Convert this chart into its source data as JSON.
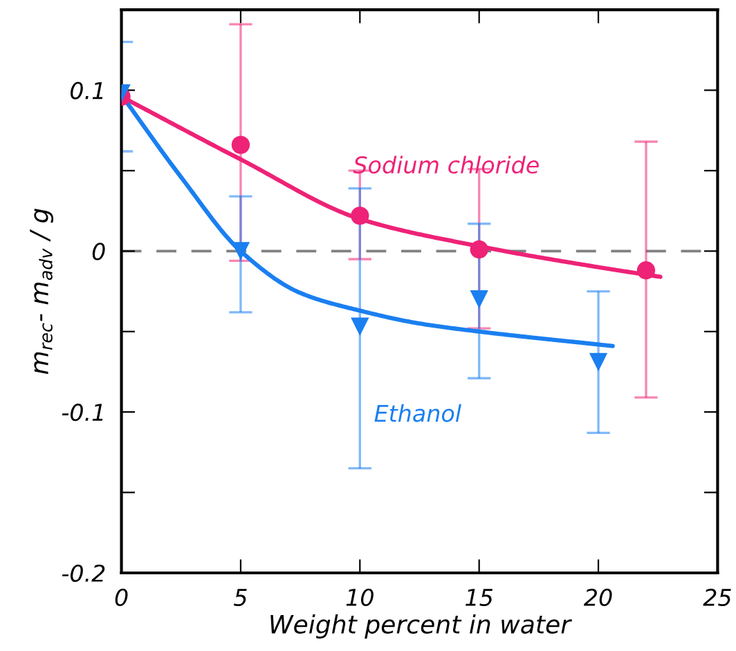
{
  "chart_data": {
    "type": "scatter",
    "xlabel": "Weight percent in water",
    "ylabel": "m$_{rec}$- m$_{adv}$ / g",
    "xlim": [
      0,
      25
    ],
    "xticks": [
      0,
      5,
      10,
      15,
      20,
      25
    ],
    "ylim": [
      -0.2,
      0.15
    ],
    "yticks": [
      -0.2,
      {
        "value": -0.15,
        "label": null
      },
      -0.1,
      {
        "value": -0.05,
        "label": null
      },
      0,
      {
        "value": 0.05,
        "label": null
      },
      0.1
    ],
    "grid": false,
    "ref_lines": [
      {
        "axis": "y",
        "value": 0,
        "color": "#808080",
        "line_style": "dashed"
      }
    ],
    "series": [
      {
        "type": "line",
        "name": "Sodium chloride",
        "color": "#ee2277",
        "x": [
          0,
          5,
          10,
          15,
          20,
          22.6
        ],
        "values": [
          0.096,
          0.057,
          0.02,
          0.003,
          -0.01,
          -0.016
        ]
      },
      {
        "type": "line",
        "name": "Ethanol",
        "color": "#1a7ff0",
        "x": [
          0,
          2.5,
          5,
          7.5,
          10,
          12.5,
          15,
          20.6
        ],
        "values": [
          0.097,
          0.046,
          0.0,
          -0.026,
          -0.037,
          -0.045,
          -0.05,
          -0.059
        ]
      },
      {
        "marker": "circle",
        "color": "#ee2277",
        "x": [
          0,
          5,
          10,
          15,
          22
        ],
        "values": [
          0.096,
          0.066,
          0.022,
          0.001,
          -0.012
        ],
        "errors": [
          null,
          [
            -0.006,
            0.141
          ],
          [
            -0.005,
            0.05
          ],
          [
            -0.048,
            0.051
          ],
          [
            -0.091,
            0.068
          ]
        ]
      },
      {
        "marker": "triangle",
        "color": "#1a7ff0",
        "x": [
          0,
          5,
          10,
          15,
          20
        ],
        "values": [
          0.098,
          0.0,
          -0.047,
          -0.03,
          -0.069
        ],
        "errors": [
          [
            0.062,
            0.13
          ],
          [
            -0.038,
            0.034
          ],
          [
            -0.135,
            0.039
          ],
          [
            -0.079,
            0.017
          ],
          [
            -0.113,
            -0.025
          ]
        ]
      }
    ]
  }
}
